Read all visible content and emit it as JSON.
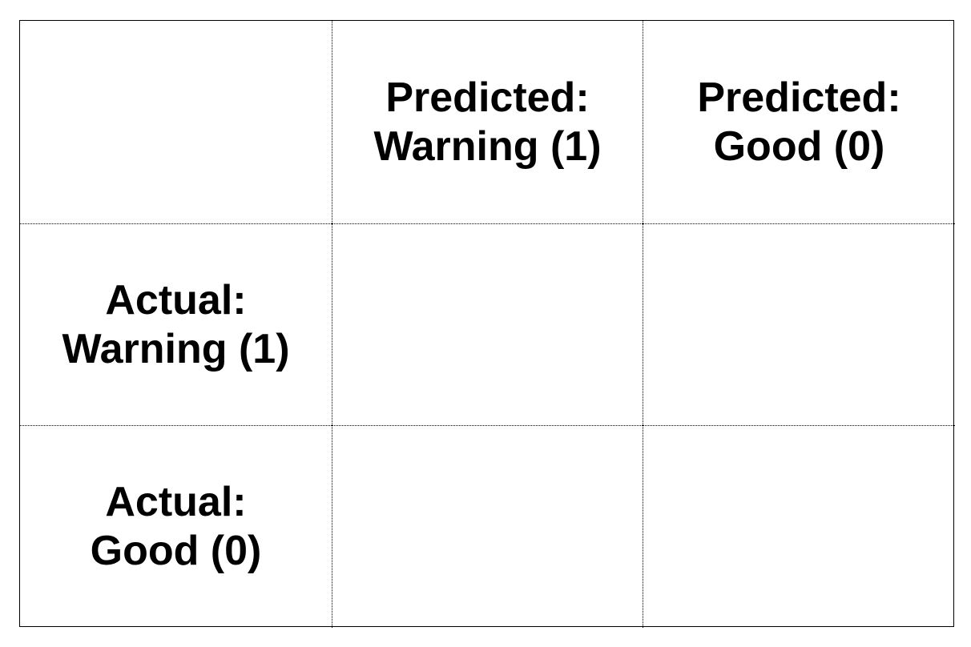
{
  "matrix": {
    "column_headers": [
      {
        "line1": "Predicted:",
        "line2": "Warning (1)"
      },
      {
        "line1": "Predicted:",
        "line2": "Good (0)"
      }
    ],
    "row_headers": [
      {
        "line1": "Actual:",
        "line2": "Warning (1)"
      },
      {
        "line1": "Actual:",
        "line2": "Good (0)"
      }
    ],
    "cells": [
      [
        "",
        ""
      ],
      [
        "",
        ""
      ]
    ]
  }
}
